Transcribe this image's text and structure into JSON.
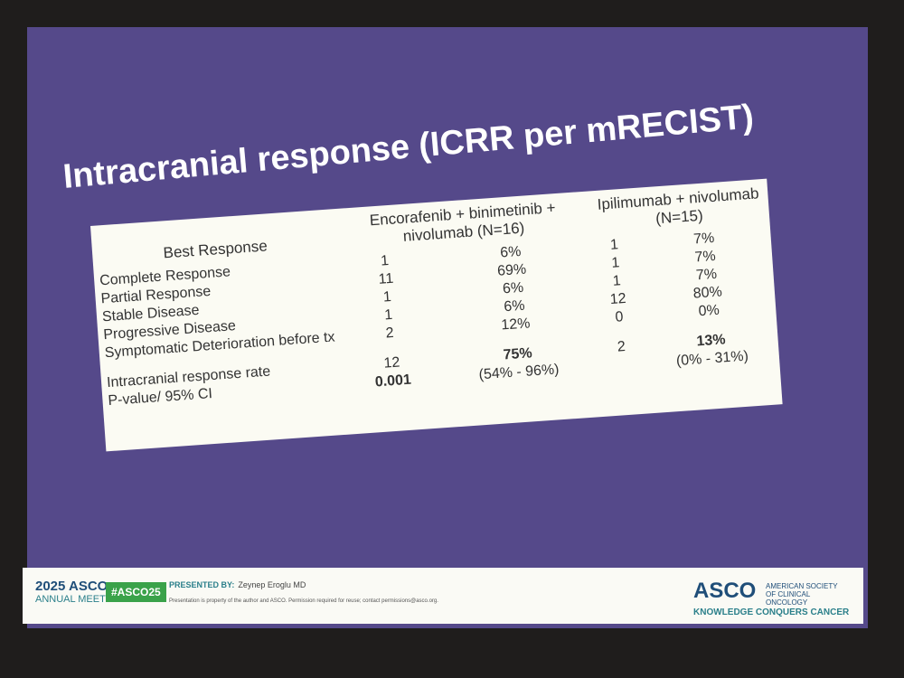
{
  "slide": {
    "title": "Intracranial response (ICRR per mRECIST)",
    "table": {
      "headers": [
        "Best Response",
        "Encorafenib + binimetinib + nivolumab (N=16)",
        "Ipilimumab + nivolumab (N=15)"
      ],
      "rows": [
        {
          "label": "Complete Response",
          "enc_n": 1,
          "enc_pct": "6%",
          "ipi_n": 1,
          "ipi_pct": "7%"
        },
        {
          "label": "Partial Response",
          "enc_n": 11,
          "enc_pct": "69%",
          "ipi_n": 1,
          "ipi_pct": "7%"
        },
        {
          "label": "Stable Disease",
          "enc_n": 1,
          "enc_pct": "6%",
          "ipi_n": 1,
          "ipi_pct": "7%"
        },
        {
          "label": "Progressive Disease",
          "enc_n": 1,
          "enc_pct": "6%",
          "ipi_n": 12,
          "ipi_pct": "80%"
        },
        {
          "label": "Symptomatic Deterioration before tx",
          "enc_n": 2,
          "enc_pct": "12%",
          "ipi_n": 0,
          "ipi_pct": "0%"
        },
        {
          "label": "Intracranial response rate",
          "enc_n": 12,
          "enc_pct": "75%",
          "ipi_n": 2,
          "ipi_pct": "13%"
        },
        {
          "label": "P-value/ 95% CI",
          "enc_n": 0.001,
          "enc_pct": "(54% - 96%)",
          "ipi_pct": "(0% - 31%)"
        }
      ]
    },
    "footer": {
      "meeting_year": "2025 ASCO",
      "meeting_name": "ANNUAL MEETING",
      "hashtag": "#ASCO25",
      "presented_by_label": "PRESENTED BY:",
      "presenter": "Zeynep Eroglu MD",
      "notice": "Presentation is property of the author and ASCO. Permission required for reuse; contact permissions@asco.org.",
      "logo": "ASCO",
      "society": "AMERICAN SOCIETY OF CLINICAL ONCOLOGY",
      "tagline": "KNOWLEDGE CONQUERS CANCER"
    }
  }
}
